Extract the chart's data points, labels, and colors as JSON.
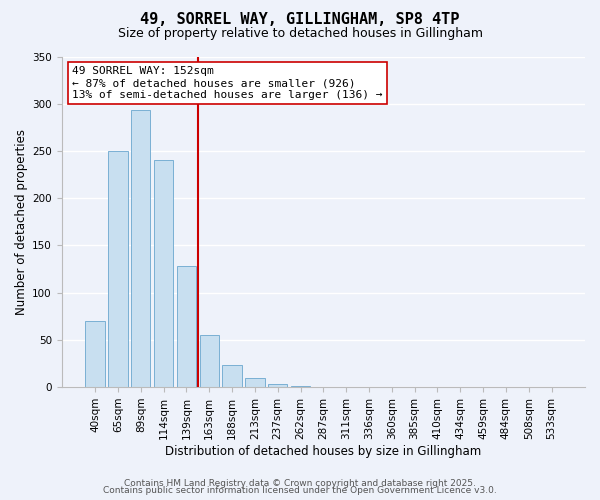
{
  "title": "49, SORREL WAY, GILLINGHAM, SP8 4TP",
  "subtitle": "Size of property relative to detached houses in Gillingham",
  "bar_values": [
    70,
    250,
    293,
    240,
    128,
    55,
    23,
    10,
    3,
    1,
    0,
    0,
    0,
    0,
    0,
    0,
    0,
    0,
    0,
    0,
    0
  ],
  "x_labels": [
    "40sqm",
    "65sqm",
    "89sqm",
    "114sqm",
    "139sqm",
    "163sqm",
    "188sqm",
    "213sqm",
    "237sqm",
    "262sqm",
    "287sqm",
    "311sqm",
    "336sqm",
    "360sqm",
    "385sqm",
    "410sqm",
    "434sqm",
    "459sqm",
    "484sqm",
    "508sqm",
    "533sqm"
  ],
  "bar_color": "#c8dff0",
  "bar_edgecolor": "#7ab0d4",
  "ylabel": "Number of detached properties",
  "xlabel": "Distribution of detached houses by size in Gillingham",
  "ylim": [
    0,
    350
  ],
  "yticks": [
    0,
    50,
    100,
    150,
    200,
    250,
    300,
    350
  ],
  "vline_x_index": 5,
  "vline_color": "#cc0000",
  "annotation_title": "49 SORREL WAY: 152sqm",
  "annotation_line1": "← 87% of detached houses are smaller (926)",
  "annotation_line2": "13% of semi-detached houses are larger (136) →",
  "footer1": "Contains HM Land Registry data © Crown copyright and database right 2025.",
  "footer2": "Contains public sector information licensed under the Open Government Licence v3.0.",
  "background_color": "#eef2fa",
  "grid_color": "#ffffff",
  "title_fontsize": 11,
  "subtitle_fontsize": 9,
  "xlabel_fontsize": 8.5,
  "ylabel_fontsize": 8.5,
  "tick_fontsize": 7.5,
  "footer_fontsize": 6.5,
  "annotation_fontsize": 8
}
